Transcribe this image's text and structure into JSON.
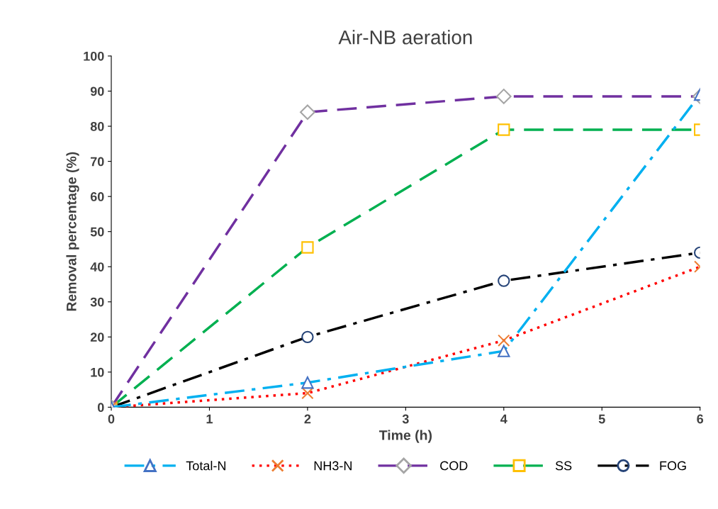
{
  "chart_data": {
    "type": "line",
    "title": "Air-NB aeration",
    "xlabel": "Time (h)",
    "ylabel": "Removal percentage (%)",
    "x": [
      0,
      2,
      4,
      6
    ],
    "series": [
      {
        "name": "Total-N",
        "color": "#00b0f0",
        "line_style": "dashdot",
        "marker": "triangle",
        "colors": [
          "#4472c4",
          "#4472c4",
          "#4472c4",
          "#4472c4"
        ],
        "values": [
          0,
          7,
          16,
          89
        ]
      },
      {
        "name": "NH3-N",
        "color": "#ff0000",
        "line_style": "dotted",
        "marker": "cross",
        "colors": [
          "#ed7d31",
          "#ed7d31",
          "#ed7d31",
          "#ed7d31"
        ],
        "values": [
          0,
          4,
          19,
          40
        ]
      },
      {
        "name": "COD",
        "color": "#7030a0",
        "line_style": "dashed",
        "marker": "diamond",
        "colors": [
          "#a5a5a5",
          "#a5a5a5",
          "#a5a5a5",
          "#a5a5a5"
        ],
        "values": [
          0,
          84,
          88.5,
          88.5
        ]
      },
      {
        "name": "SS",
        "color": "#00b050",
        "line_style": "dashed",
        "marker": "square",
        "colors": [
          "#ffc000",
          "#ffc000",
          "#ffc000",
          "#ffc000"
        ],
        "values": [
          0,
          45.5,
          79,
          79
        ]
      },
      {
        "name": "FOG",
        "color": "#000000",
        "line_style": "dashdot",
        "marker": "circle",
        "colors": [
          "#264478",
          "#264478",
          "#264478",
          "#264478"
        ],
        "values": [
          0,
          20,
          36,
          44
        ]
      }
    ],
    "xlim": [
      0,
      6
    ],
    "xticks": [
      0,
      1,
      2,
      3,
      4,
      5,
      6
    ],
    "ylim": [
      0,
      100
    ],
    "yticks": [
      0,
      10,
      20,
      30,
      40,
      50,
      60,
      70,
      80,
      90,
      100
    ],
    "grid": false,
    "legend": "bottom"
  }
}
